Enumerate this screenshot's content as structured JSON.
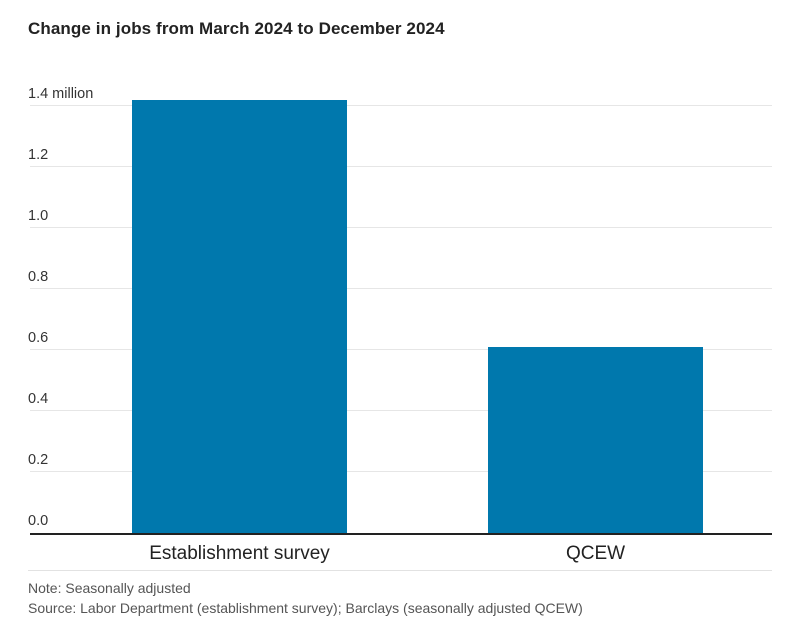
{
  "chart_data": {
    "type": "bar",
    "title": "Change in jobs from March 2024 to December 2024",
    "categories": [
      "Establishment survey",
      "QCEW"
    ],
    "values": [
      1.42,
      0.61
    ],
    "unit": "million",
    "xlabel": "",
    "ylabel": "",
    "ylim": [
      0,
      1.4
    ],
    "grid": true,
    "legend": "none",
    "bar_color": "#0078ad",
    "yticks": [
      {
        "value": 0.0,
        "label": "0.0"
      },
      {
        "value": 0.2,
        "label": "0.2"
      },
      {
        "value": 0.4,
        "label": "0.4"
      },
      {
        "value": 0.6,
        "label": "0.6"
      },
      {
        "value": 0.8,
        "label": "0.8"
      },
      {
        "value": 1.0,
        "label": "1.0"
      },
      {
        "value": 1.2,
        "label": "1.2"
      },
      {
        "value": 1.4,
        "label": "1.4 million"
      }
    ]
  },
  "footer": {
    "note": "Note: Seasonally adjusted",
    "source": "Source: Labor Department (establishment survey); Barclays (seasonally adjusted QCEW)"
  },
  "colors": {
    "bar": "#0078ad",
    "gridline": "#e6e6e6",
    "axis": "#222222",
    "divider": "#e2e2e2",
    "title_text": "#222222",
    "tick_text": "#333333",
    "footer_text": "#555555"
  }
}
